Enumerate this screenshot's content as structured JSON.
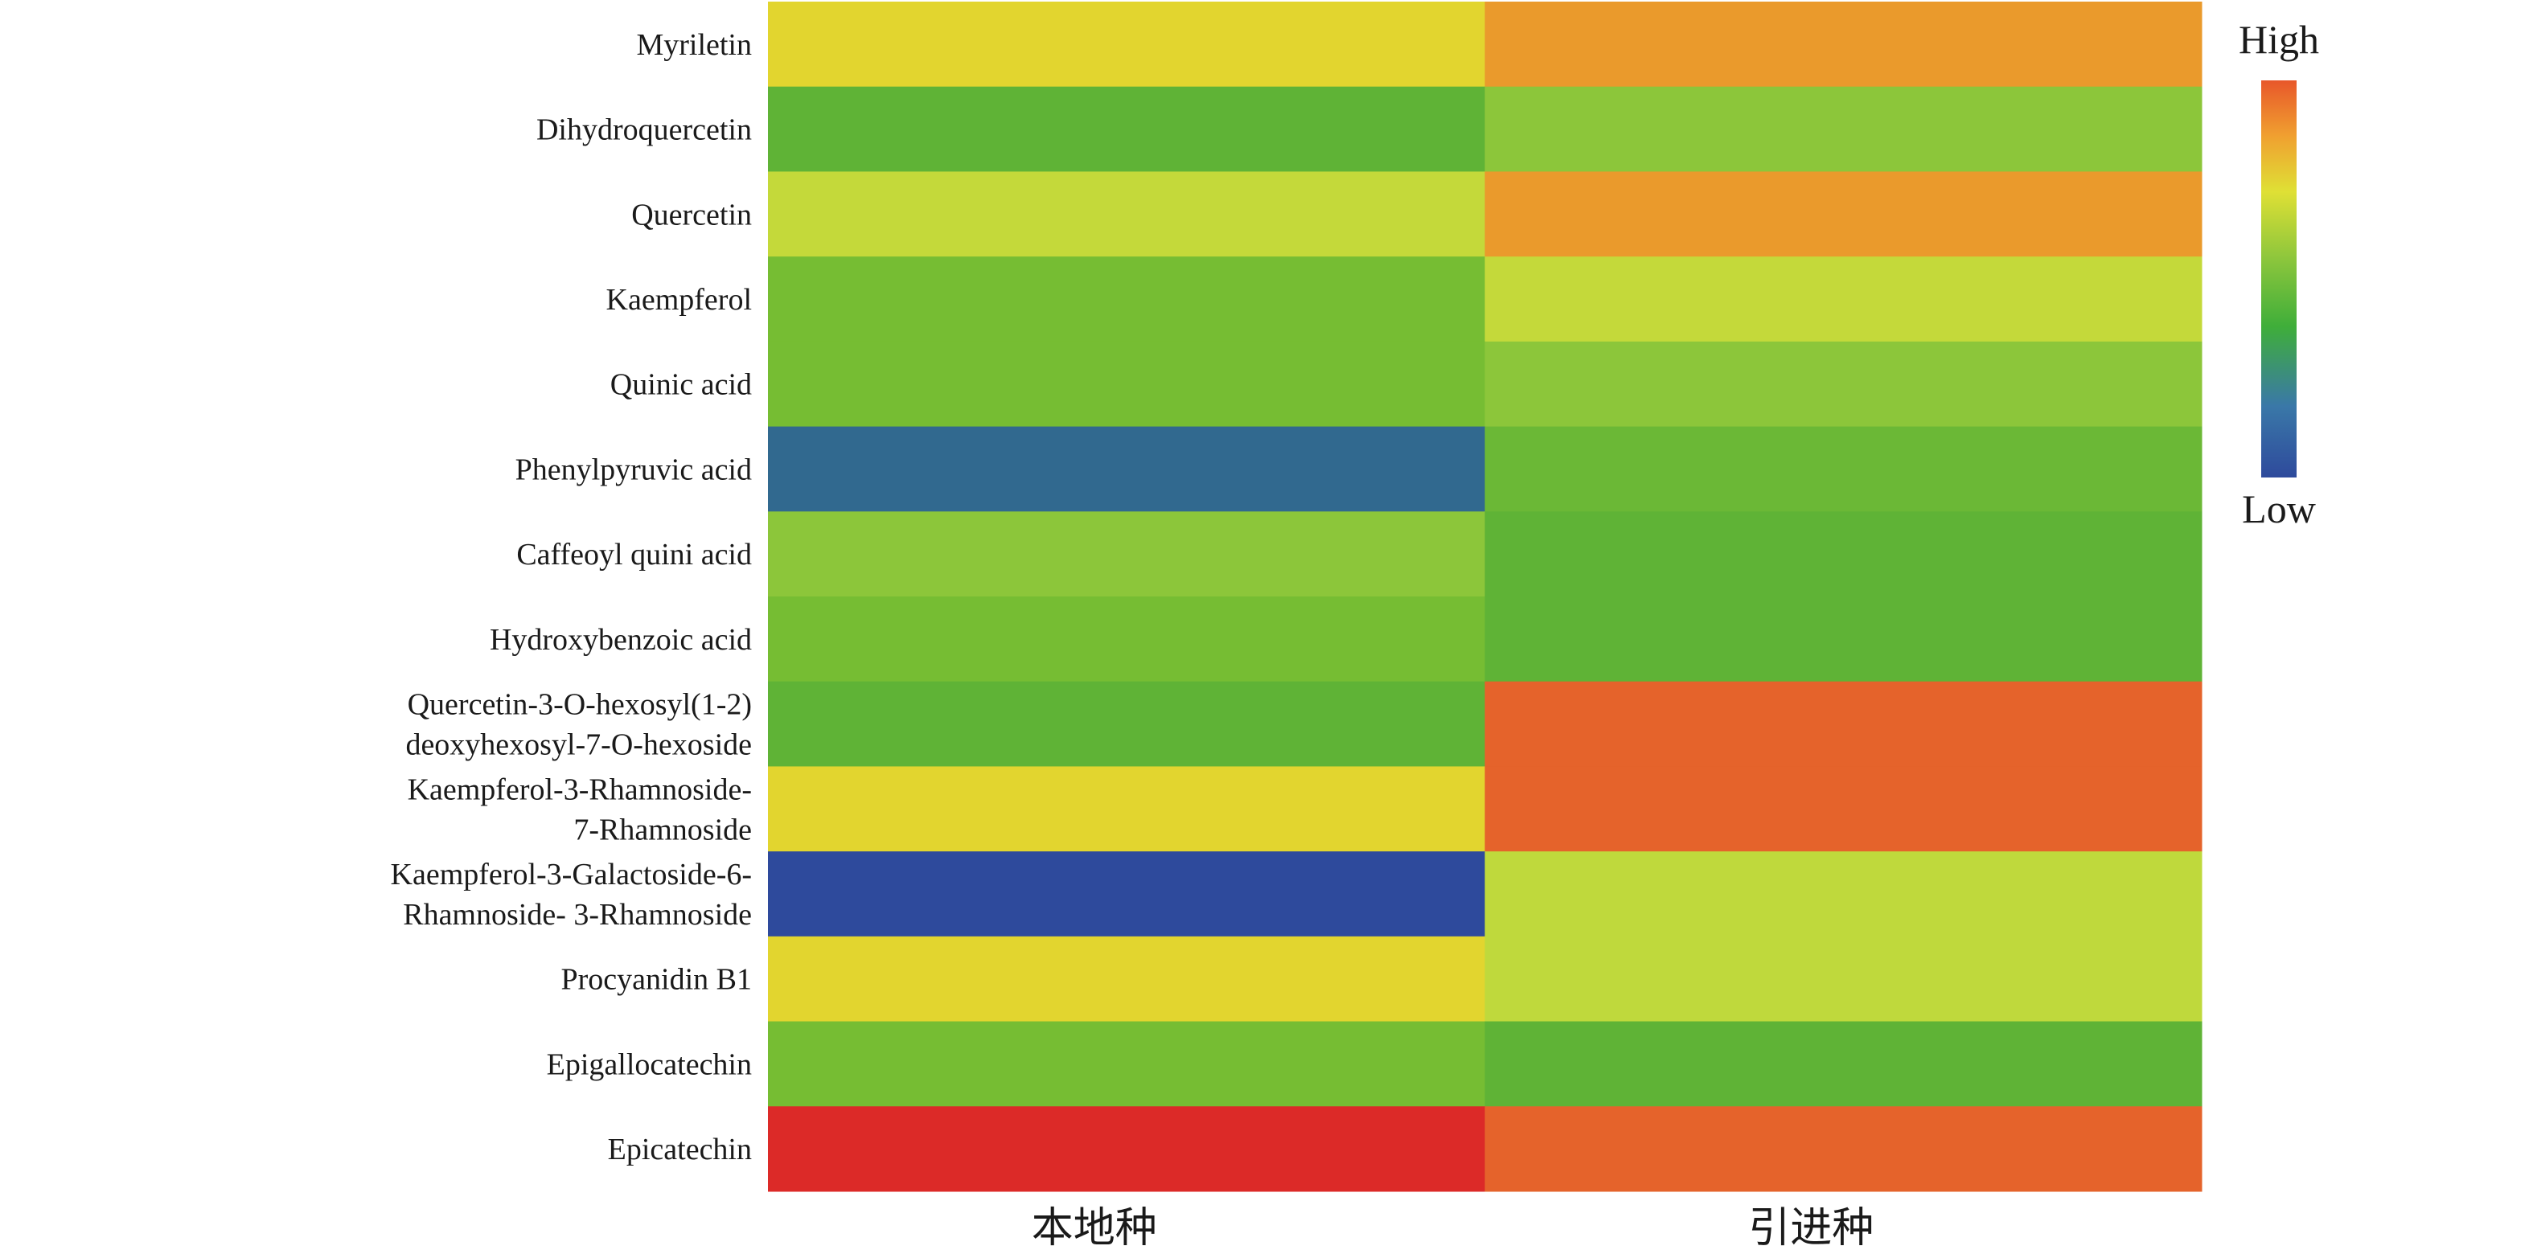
{
  "chart_data": {
    "type": "heatmap",
    "rows": [
      [
        "Myriletin"
      ],
      [
        "Dihydroquercetin"
      ],
      [
        "Quercetin"
      ],
      [
        "Kaempferol"
      ],
      [
        "Quinic acid"
      ],
      [
        "Phenylpyruvic acid"
      ],
      [
        "Caffeoyl quini acid"
      ],
      [
        "Hydroxybenzoic acid"
      ],
      [
        "Quercetin-3-O-hexosyl(1-2)",
        "deoxyhexosyl-7-O-hexoside"
      ],
      [
        "Kaempferol-3-Rhamnoside-",
        "7-Rhamnoside"
      ],
      [
        "Kaempferol-3-Galactoside-6-",
        "Rhamnoside- 3-Rhamnoside"
      ],
      [
        "Procyanidin B1"
      ],
      [
        "Epigallocatechin"
      ],
      [
        "Epicatechin"
      ]
    ],
    "columns": [
      "本地种",
      "引进种"
    ],
    "values": [
      [
        0.72,
        0.86
      ],
      [
        0.38,
        0.5
      ],
      [
        0.62,
        0.86
      ],
      [
        0.44,
        0.6
      ],
      [
        0.44,
        0.52
      ],
      [
        0.04,
        0.44
      ],
      [
        0.52,
        0.38
      ],
      [
        0.45,
        0.38
      ],
      [
        0.39,
        0.94
      ],
      [
        0.72,
        0.94
      ],
      [
        0.0,
        0.62
      ],
      [
        0.72,
        0.62
      ],
      [
        0.44,
        0.38
      ],
      [
        1.0,
        0.92
      ]
    ],
    "color_scale": {
      "high_label": "High",
      "low_label": "Low",
      "stops": [
        "#2e4a9c",
        "#3a78a8",
        "#3fae3a",
        "#8cc63c",
        "#dfe035",
        "#f0a030",
        "#e8572a"
      ]
    },
    "cell_colors": [
      [
        "#e2d52f",
        "#ea9a2c"
      ],
      [
        "#5fb336",
        "#8cc63a"
      ],
      [
        "#c4d93a",
        "#ea9a2c"
      ],
      [
        "#76bd33",
        "#c4d93a"
      ],
      [
        "#76bd33",
        "#8cc63a"
      ],
      [
        "#31698f",
        "#6bb836"
      ],
      [
        "#8cc63a",
        "#5fb336"
      ],
      [
        "#76bd33",
        "#5fb336"
      ],
      [
        "#5fb336",
        "#e5632b"
      ],
      [
        "#e2d52f",
        "#e5632b"
      ],
      [
        "#2e4a9c",
        "#bfd93c"
      ],
      [
        "#e2d52f",
        "#bfd93c"
      ],
      [
        "#76bd33",
        "#5fb336"
      ],
      [
        "#dc2a28",
        "#e5632b"
      ]
    ]
  }
}
